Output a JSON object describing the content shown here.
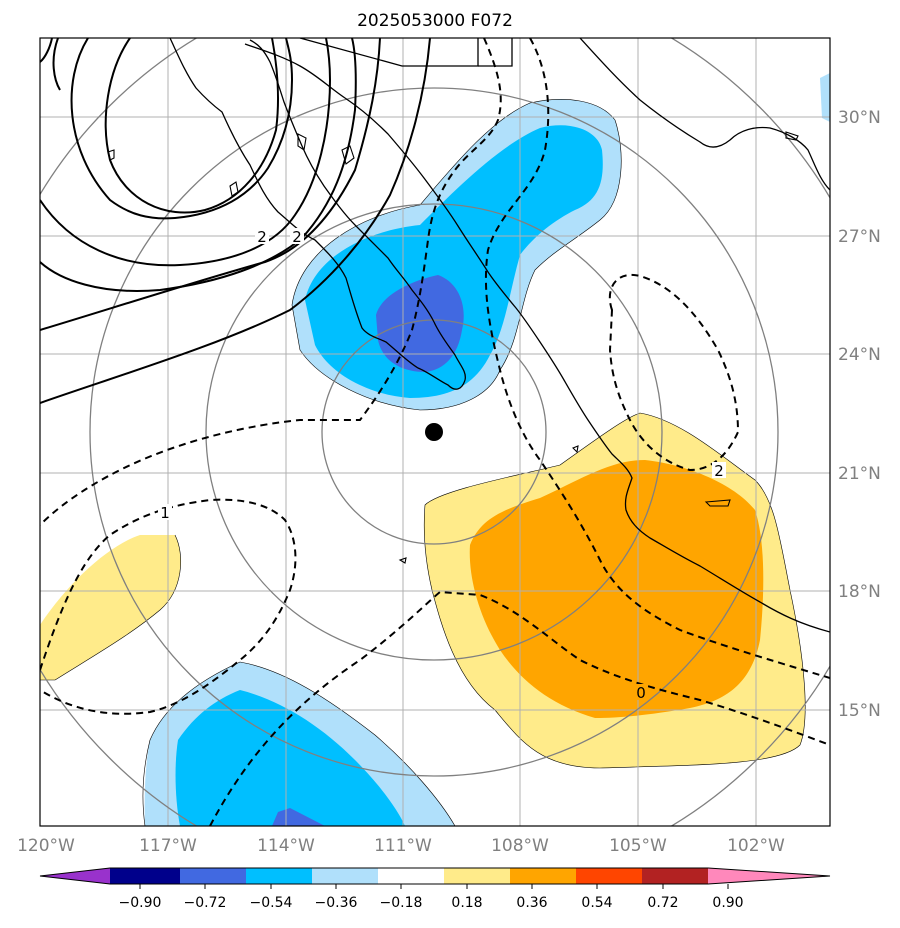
{
  "title": "2025053000 F072",
  "longitude_labels": [
    "120°W",
    "117°W",
    "114°W",
    "111°W",
    "108°W",
    "105°W",
    "102°W"
  ],
  "latitude_labels": [
    "30°N",
    "27°N",
    "24°N",
    "21°N",
    "18°N",
    "15°N"
  ],
  "contour_labels": [
    "2",
    "2",
    "1",
    "2",
    "0"
  ],
  "colorbar": {
    "tick_labels": [
      "−0.90",
      "−0.72",
      "−0.54",
      "−0.36",
      "−0.18",
      "0.18",
      "0.36",
      "0.54",
      "0.72",
      "0.90"
    ],
    "colors": [
      "#9932cc",
      "#00008b",
      "#4169e1",
      "#00bfff",
      "#b0e0fb",
      "#ffffff",
      "#ffeb8a",
      "#ffa500",
      "#ff4500",
      "#b22222",
      "#ff88bb"
    ]
  },
  "fill_colors": {
    "light_blue": "#b0e0fb",
    "blue": "#00bfff",
    "royal_blue": "#4169e1",
    "light_yellow": "#ffeb8a",
    "orange": "#ffa500"
  }
}
